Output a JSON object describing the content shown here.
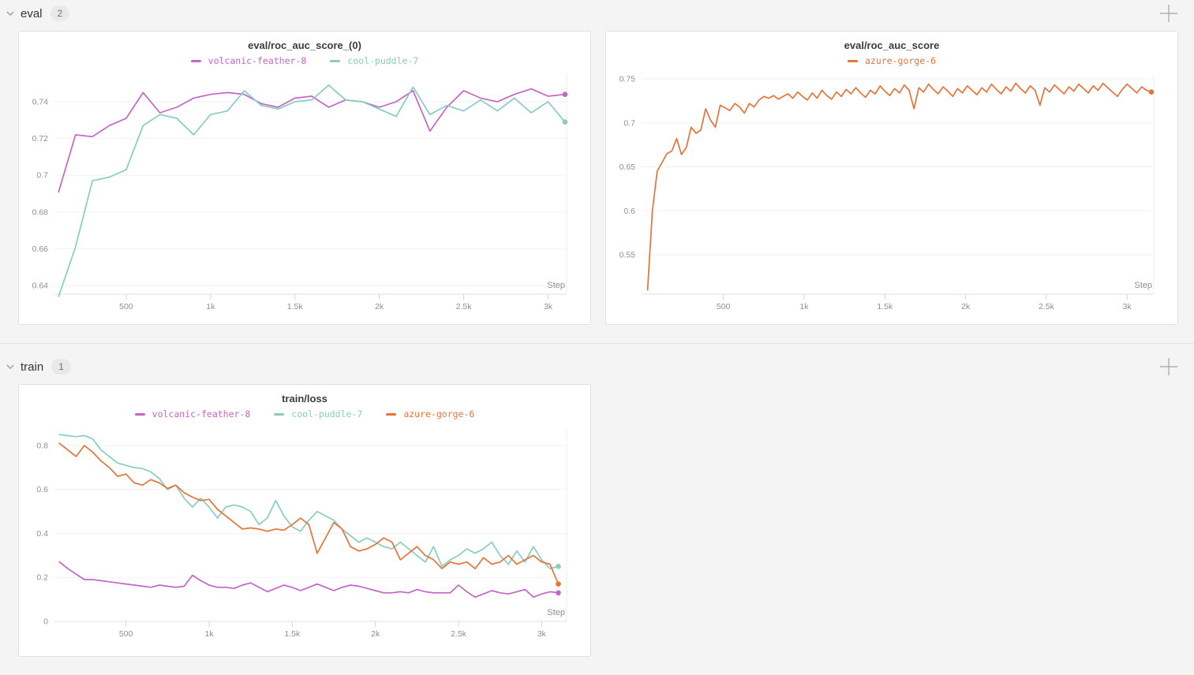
{
  "page": {
    "background": "#f4f4f5"
  },
  "colors": {
    "magenta": "#C565C7",
    "teal": "#87CEBF",
    "orange": "#E57439",
    "grid": "#f2f2f4",
    "axis": "#e2e2e4",
    "tick": "#d6d6da",
    "tick_label": "#8e8e96",
    "title_text": "#3b3c42"
  },
  "sections": [
    {
      "label": "eval",
      "count": "2"
    },
    {
      "label": "train",
      "count": "1"
    }
  ],
  "icons": {
    "plus": "+",
    "chevron": "v"
  },
  "chart_data": [
    {
      "type": "line",
      "title": "eval/roc_auc_score_(0)",
      "xlabel": "Step",
      "x_domain": [
        75,
        3110
      ],
      "y_domain": [
        0.6353,
        0.7546
      ],
      "grid": "horizontal",
      "legend_position": "top-center",
      "y_ticks": [
        {
          "v": 0.74,
          "label": "0.74"
        },
        {
          "v": 0.72,
          "label": "0.72"
        },
        {
          "v": 0.7,
          "label": "0.7"
        },
        {
          "v": 0.68,
          "label": "0.68"
        },
        {
          "v": 0.66,
          "label": "0.66"
        },
        {
          "v": 0.64,
          "label": "0.64"
        }
      ],
      "x_ticks": [
        {
          "v": 500,
          "label": "500"
        },
        {
          "v": 1000,
          "label": "1k"
        },
        {
          "v": 1500,
          "label": "1.5k"
        },
        {
          "v": 2000,
          "label": "2k"
        },
        {
          "v": 2500,
          "label": "2.5k"
        },
        {
          "v": 3000,
          "label": "3k"
        }
      ],
      "series": [
        {
          "name": "volcanic-feather-8",
          "color": "#C565C7",
          "x_start": 100,
          "x_interval": 100,
          "end_dot": true,
          "values": [
            0.691,
            0.722,
            0.721,
            0.727,
            0.731,
            0.745,
            0.734,
            0.737,
            0.742,
            0.744,
            0.745,
            0.744,
            0.739,
            0.737,
            0.742,
            0.743,
            0.737,
            0.741,
            0.74,
            0.737,
            0.74,
            0.746,
            0.724,
            0.737,
            0.746,
            0.742,
            0.74,
            0.744,
            0.747,
            0.743,
            0.744
          ]
        },
        {
          "name": "cool-puddle-7",
          "color": "#87CEBF",
          "x_start": 100,
          "x_interval": 100,
          "end_dot": true,
          "values": [
            0.634,
            0.661,
            0.697,
            0.699,
            0.703,
            0.727,
            0.733,
            0.731,
            0.722,
            0.733,
            0.735,
            0.746,
            0.738,
            0.736,
            0.74,
            0.741,
            0.749,
            0.741,
            0.74,
            0.736,
            0.732,
            0.748,
            0.733,
            0.738,
            0.735,
            0.741,
            0.735,
            0.742,
            0.734,
            0.74,
            0.729
          ]
        }
      ]
    },
    {
      "type": "line",
      "title": "eval/roc_auc_score",
      "xlabel": "Step",
      "x_domain": [
        -7,
        3165
      ],
      "y_domain": [
        0.5052,
        0.7545
      ],
      "grid": "horizontal",
      "legend_position": "top-center",
      "y_ticks": [
        {
          "v": 0.75,
          "label": "0.75"
        },
        {
          "v": 0.7,
          "label": "0.7"
        },
        {
          "v": 0.65,
          "label": "0.65"
        },
        {
          "v": 0.6,
          "label": "0.6"
        },
        {
          "v": 0.55,
          "label": "0.55"
        }
      ],
      "x_ticks": [
        {
          "v": 500,
          "label": "500"
        },
        {
          "v": 1000,
          "label": "1k"
        },
        {
          "v": 1500,
          "label": "1.5k"
        },
        {
          "v": 2000,
          "label": "2k"
        },
        {
          "v": 2500,
          "label": "2.5k"
        },
        {
          "v": 3000,
          "label": "3k"
        }
      ],
      "series": [
        {
          "name": "azure-gorge-6",
          "color": "#E57439",
          "x_start": 30,
          "x_interval": 30,
          "end_dot": true,
          "values": [
            0.51,
            0.6,
            0.645,
            0.655,
            0.665,
            0.668,
            0.682,
            0.664,
            0.672,
            0.695,
            0.688,
            0.692,
            0.716,
            0.703,
            0.695,
            0.72,
            0.717,
            0.714,
            0.722,
            0.718,
            0.711,
            0.722,
            0.718,
            0.726,
            0.73,
            0.728,
            0.731,
            0.727,
            0.73,
            0.733,
            0.728,
            0.735,
            0.73,
            0.726,
            0.734,
            0.728,
            0.737,
            0.731,
            0.727,
            0.735,
            0.73,
            0.738,
            0.733,
            0.74,
            0.734,
            0.729,
            0.737,
            0.733,
            0.742,
            0.736,
            0.731,
            0.739,
            0.734,
            0.743,
            0.737,
            0.716,
            0.74,
            0.735,
            0.744,
            0.738,
            0.733,
            0.741,
            0.736,
            0.73,
            0.739,
            0.734,
            0.742,
            0.737,
            0.732,
            0.74,
            0.735,
            0.744,
            0.738,
            0.733,
            0.741,
            0.736,
            0.745,
            0.739,
            0.734,
            0.742,
            0.737,
            0.72,
            0.74,
            0.735,
            0.743,
            0.738,
            0.733,
            0.741,
            0.736,
            0.744,
            0.739,
            0.734,
            0.742,
            0.737,
            0.745,
            0.74,
            0.735,
            0.73,
            0.738,
            0.744,
            0.739,
            0.734,
            0.741,
            0.737,
            0.735
          ]
        }
      ]
    },
    {
      "type": "line",
      "title": "train/loss",
      "xlabel": "Step",
      "x_domain": [
        70,
        3150
      ],
      "y_domain": [
        0,
        0.8789
      ],
      "grid": "horizontal",
      "legend_position": "top-center",
      "y_ticks": [
        {
          "v": 0.8,
          "label": "0.8"
        },
        {
          "v": 0.6,
          "label": "0.6"
        },
        {
          "v": 0.4,
          "label": "0.4"
        },
        {
          "v": 0.2,
          "label": "0.2"
        },
        {
          "v": 0,
          "label": "0"
        }
      ],
      "x_ticks": [
        {
          "v": 500,
          "label": "500"
        },
        {
          "v": 1000,
          "label": "1k"
        },
        {
          "v": 1500,
          "label": "1.5k"
        },
        {
          "v": 2000,
          "label": "2k"
        },
        {
          "v": 2500,
          "label": "2.5k"
        },
        {
          "v": 3000,
          "label": "3k"
        }
      ],
      "series": [
        {
          "name": "volcanic-feather-8",
          "color": "#C565C7",
          "x_start": 100,
          "x_interval": 50,
          "end_dot": true,
          "values": [
            0.27,
            0.24,
            0.215,
            0.19,
            0.19,
            0.185,
            0.18,
            0.175,
            0.17,
            0.165,
            0.16,
            0.155,
            0.165,
            0.16,
            0.155,
            0.16,
            0.21,
            0.185,
            0.165,
            0.155,
            0.155,
            0.15,
            0.165,
            0.175,
            0.155,
            0.135,
            0.15,
            0.165,
            0.155,
            0.14,
            0.155,
            0.17,
            0.155,
            0.14,
            0.155,
            0.165,
            0.16,
            0.15,
            0.14,
            0.13,
            0.13,
            0.135,
            0.13,
            0.145,
            0.135,
            0.13,
            0.13,
            0.13,
            0.165,
            0.135,
            0.11,
            0.125,
            0.14,
            0.13,
            0.125,
            0.135,
            0.145,
            0.11,
            0.125,
            0.135,
            0.13
          ]
        },
        {
          "name": "cool-puddle-7",
          "color": "#87CEBF",
          "x_start": 100,
          "x_interval": 50,
          "end_dot": true,
          "values": [
            0.85,
            0.845,
            0.84,
            0.845,
            0.83,
            0.78,
            0.75,
            0.72,
            0.71,
            0.7,
            0.695,
            0.68,
            0.65,
            0.6,
            0.62,
            0.56,
            0.52,
            0.56,
            0.52,
            0.47,
            0.52,
            0.53,
            0.52,
            0.5,
            0.44,
            0.47,
            0.55,
            0.48,
            0.43,
            0.41,
            0.46,
            0.5,
            0.48,
            0.46,
            0.42,
            0.39,
            0.36,
            0.38,
            0.36,
            0.34,
            0.33,
            0.36,
            0.33,
            0.3,
            0.27,
            0.34,
            0.25,
            0.28,
            0.3,
            0.33,
            0.31,
            0.33,
            0.36,
            0.3,
            0.26,
            0.32,
            0.27,
            0.34,
            0.28,
            0.24,
            0.25
          ]
        },
        {
          "name": "azure-gorge-6",
          "color": "#E57439",
          "x_start": 100,
          "x_interval": 50,
          "end_dot": true,
          "values": [
            0.81,
            0.78,
            0.75,
            0.8,
            0.77,
            0.73,
            0.7,
            0.66,
            0.67,
            0.63,
            0.62,
            0.645,
            0.63,
            0.605,
            0.62,
            0.585,
            0.565,
            0.55,
            0.555,
            0.51,
            0.48,
            0.45,
            0.42,
            0.425,
            0.42,
            0.41,
            0.42,
            0.415,
            0.44,
            0.47,
            0.44,
            0.31,
            0.38,
            0.45,
            0.42,
            0.34,
            0.32,
            0.33,
            0.35,
            0.38,
            0.36,
            0.28,
            0.31,
            0.34,
            0.3,
            0.28,
            0.24,
            0.27,
            0.26,
            0.27,
            0.24,
            0.29,
            0.26,
            0.27,
            0.3,
            0.26,
            0.28,
            0.3,
            0.27,
            0.26,
            0.17
          ]
        }
      ]
    }
  ]
}
